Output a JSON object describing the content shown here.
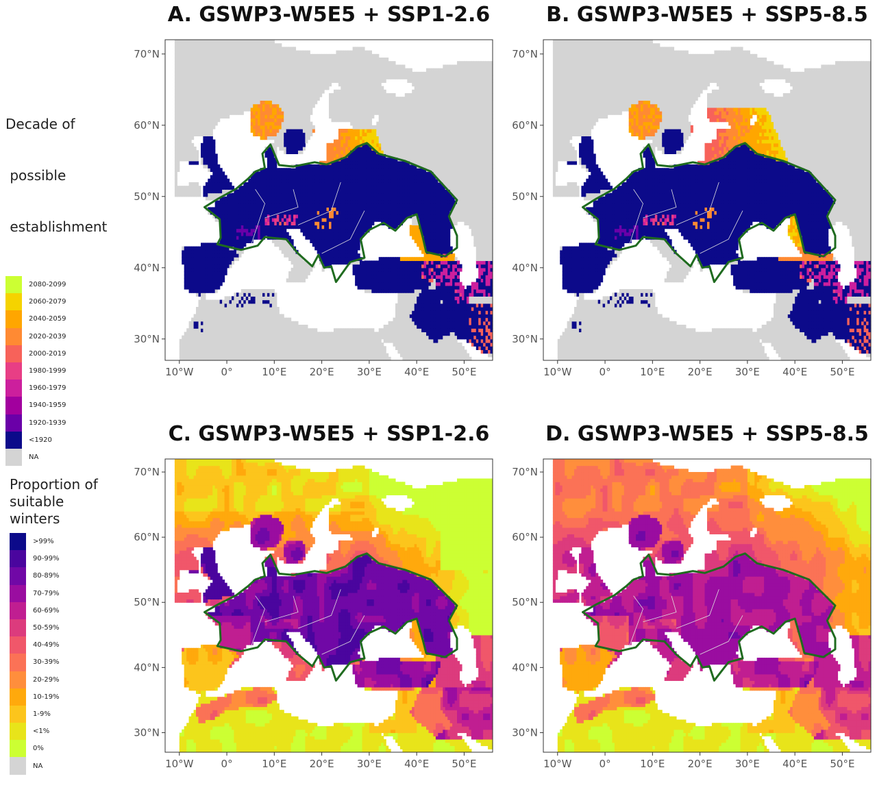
{
  "panels": [
    {
      "id": "A",
      "title": "A. GSWP3-W5E5 + SSP1-2.6",
      "palette": "decade",
      "scenario": "low"
    },
    {
      "id": "B",
      "title": "B. GSWP3-W5E5 + SSP5-8.5",
      "palette": "decade",
      "scenario": "high"
    },
    {
      "id": "C",
      "title": "C. GSWP3-W5E5 + SSP1-2.6",
      "palette": "proportion",
      "scenario": "low"
    },
    {
      "id": "D",
      "title": "D. GSWP3-W5E5 + SSP5-8.5",
      "palette": "proportion",
      "scenario": "high"
    }
  ],
  "axes": {
    "lon_ticks": [
      "10°W",
      "0°",
      "10°E",
      "20°E",
      "30°E",
      "40°E",
      "50°E"
    ],
    "lat_ticks": [
      "70°N",
      "60°N",
      "50°N",
      "40°N",
      "30°N"
    ],
    "lon_range": [
      -13,
      56
    ],
    "lat_range": [
      27,
      72
    ],
    "lon_values": [
      -10,
      0,
      10,
      20,
      30,
      40,
      50
    ],
    "lat_values": [
      70,
      60,
      50,
      40,
      30
    ]
  },
  "legend_decade": {
    "title_lines": [
      "Decade of",
      " possible",
      " establishment"
    ],
    "entries": [
      {
        "label": "2080-2099",
        "color": "#ccff33"
      },
      {
        "label": "2060-2079",
        "color": "#f5d300"
      },
      {
        "label": "2040-2059",
        "color": "#ffa600"
      },
      {
        "label": "2020-2039",
        "color": "#ff8a33"
      },
      {
        "label": "2000-2019",
        "color": "#f7625a"
      },
      {
        "label": "1980-1999",
        "color": "#e83e85"
      },
      {
        "label": "1960-1979",
        "color": "#cc1f9d"
      },
      {
        "label": "1940-1959",
        "color": "#a2009e"
      },
      {
        "label": "1920-1939",
        "color": "#6a00a8"
      },
      {
        "label": "<1920",
        "color": "#0c0a8a"
      },
      {
        "label": "NA",
        "color": "#d4d4d4"
      }
    ]
  },
  "legend_proportion": {
    "title_lines": [
      "Proportion of",
      "suitable",
      "winters"
    ],
    "entries": [
      {
        "label": ">99%",
        "color": "#0c0a8a"
      },
      {
        "label": "90-99%",
        "color": "#4a059e"
      },
      {
        "label": "80-89%",
        "color": "#7008a6"
      },
      {
        "label": "70-79%",
        "color": "#9a0da0"
      },
      {
        "label": "60-69%",
        "color": "#c01e91"
      },
      {
        "label": "50-59%",
        "color": "#dc3b7d"
      },
      {
        "label": "40-49%",
        "color": "#f0576a"
      },
      {
        "label": "30-39%",
        "color": "#fb7256"
      },
      {
        "label": "20-29%",
        "color": "#ff8e3c"
      },
      {
        "label": "10-19%",
        "color": "#ffa90c"
      },
      {
        "label": "1-9%",
        "color": "#fcc51c"
      },
      {
        "label": "<1%",
        "color": "#e8e41a"
      },
      {
        "label": "0%",
        "color": "#ccff33"
      },
      {
        "label": "NA",
        "color": "#d4d4d4"
      }
    ]
  },
  "colors": {
    "na": "#d4d4d4",
    "water": "#ffffff",
    "outline": "#1f6b1f",
    "border": "#e0e0e0",
    "frame": "#333333",
    "tick_text": "#555555"
  }
}
